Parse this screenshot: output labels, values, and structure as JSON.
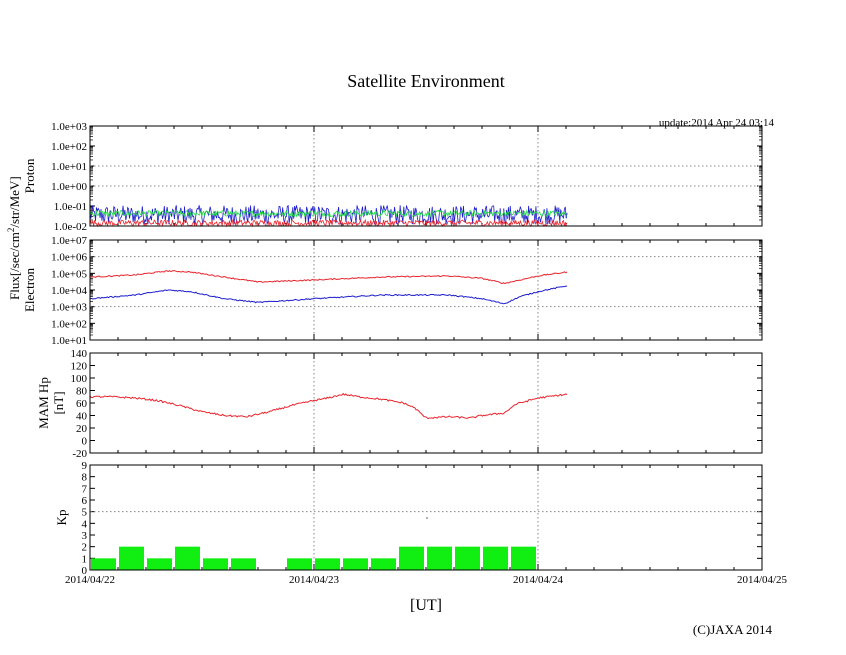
{
  "title": "Satellite Environment",
  "update": "update:2014 Apr 24 03:14",
  "copyright": "(C)JAXA 2014",
  "xlabel": "[UT]",
  "flux_label": "Flux[/sec/cm",
  "flux_sup": "2",
  "flux_label_tail": "/str/MeV]",
  "x_ticks": [
    "2014/04/22",
    "2014/04/23",
    "2014/04/24",
    "2014/04/25"
  ],
  "colors": {
    "red": "#e8242c",
    "blue": "#1c1ccc",
    "green": "#22dd44",
    "kp": "#11ee11"
  },
  "chart_data": [
    {
      "type": "line",
      "name": "proton",
      "ylabel": "Proton",
      "yscale": "log",
      "ylim": [
        0.01,
        1000
      ],
      "y_ticks": [
        "1.0e-02",
        "1.0e-01",
        "1.0e+00",
        "1.0e+01",
        "1.0e+02",
        "1.0e+03"
      ],
      "x_range_days": [
        0,
        3
      ],
      "series": [
        {
          "name": "blue",
          "band": [
            0.012,
            0.11
          ],
          "end_day": 2.13
        },
        {
          "name": "green",
          "band": [
            0.03,
            0.06
          ],
          "end_day": 2.13
        },
        {
          "name": "red",
          "band": [
            0.01,
            0.02
          ],
          "end_day": 2.13
        }
      ]
    },
    {
      "type": "line",
      "name": "electron",
      "ylabel": "Electron",
      "yscale": "log",
      "ylim": [
        10,
        10000000
      ],
      "y_ticks": [
        "1.0e+01",
        "1.0e+02",
        "1.0e+03",
        "1.0e+04",
        "1.0e+05",
        "1.0e+06",
        "1.0e+07"
      ],
      "x": [
        0,
        0.2,
        0.35,
        0.45,
        0.6,
        0.75,
        1.0,
        1.3,
        1.6,
        1.75,
        1.85,
        1.92,
        2.0,
        2.13
      ],
      "series": [
        {
          "name": "red",
          "values": [
            60000,
            80000,
            140000,
            120000,
            60000,
            30000,
            40000,
            60000,
            70000,
            50000,
            25000,
            40000,
            70000,
            120000
          ]
        },
        {
          "name": "blue",
          "values": [
            3000,
            5000,
            10000,
            8000,
            3000,
            1800,
            3000,
            5000,
            5000,
            3000,
            1500,
            4000,
            8000,
            18000
          ]
        }
      ]
    },
    {
      "type": "line",
      "name": "magnetic",
      "ylabel": "MAM Hp",
      "ylabel2": "[nT]",
      "ylim": [
        -20,
        140
      ],
      "y_ticks": [
        "-20",
        "0",
        "20",
        "40",
        "60",
        "80",
        "100",
        "120",
        "140"
      ],
      "x": [
        0,
        0.1,
        0.2,
        0.3,
        0.4,
        0.5,
        0.6,
        0.7,
        0.8,
        0.9,
        1.0,
        1.05,
        1.13,
        1.2,
        1.3,
        1.4,
        1.45,
        1.5,
        1.6,
        1.7,
        1.75,
        1.85,
        1.9,
        2.0,
        2.13
      ],
      "series": [
        {
          "name": "red",
          "values": [
            70,
            70,
            68,
            64,
            56,
            46,
            40,
            38,
            46,
            56,
            64,
            67,
            74,
            70,
            66,
            60,
            52,
            36,
            38,
            36,
            40,
            44,
            58,
            68,
            74
          ]
        }
      ]
    },
    {
      "type": "bar",
      "name": "kp",
      "ylabel": "Kp",
      "ylim": [
        0,
        9
      ],
      "y_ticks": [
        "0",
        "1",
        "2",
        "3",
        "4",
        "5",
        "6",
        "7",
        "8",
        "9"
      ],
      "bar_width_days": 0.125,
      "categories": [
        "0.00",
        "0.125",
        "0.25",
        "0.375",
        "0.50",
        "0.625",
        "0.875",
        "1.00",
        "1.125",
        "1.25",
        "1.375",
        "1.50",
        "1.625",
        "1.75",
        "1.875"
      ],
      "values": [
        1,
        2,
        1,
        2,
        1,
        1,
        1,
        1,
        1,
        1,
        2,
        2,
        2,
        2,
        2
      ]
    }
  ]
}
